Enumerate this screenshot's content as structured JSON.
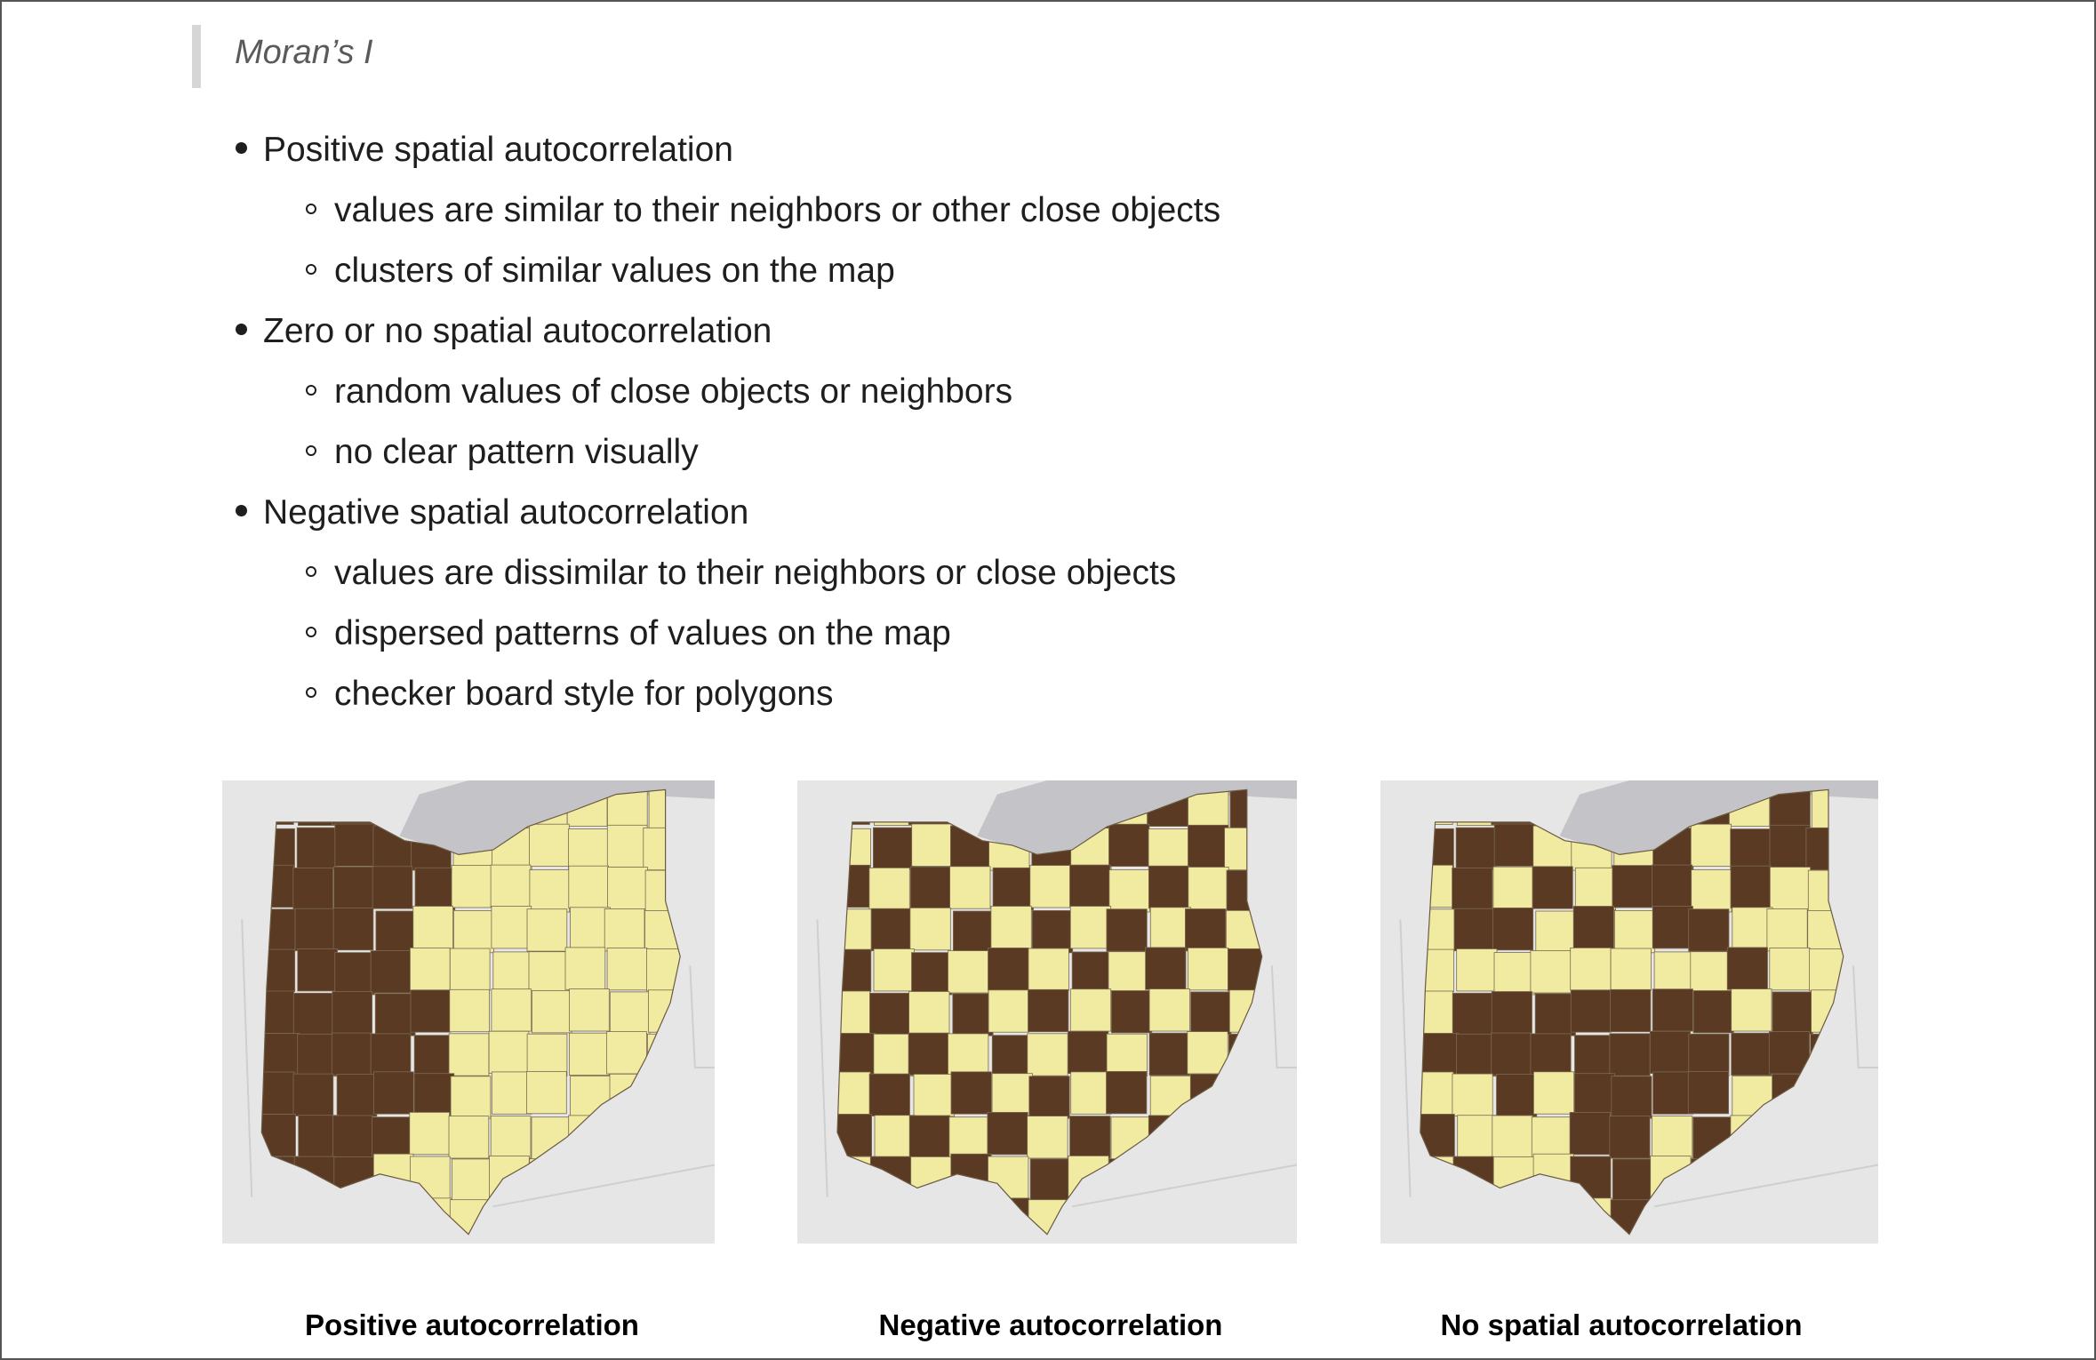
{
  "heading": "Moran’s I",
  "bullets": [
    {
      "text": "Positive spatial autocorrelation",
      "children": [
        "values are similar to their neighbors or other close objects",
        "clusters of similar values on the map"
      ]
    },
    {
      "text": "Zero or no spatial autocorrelation",
      "children": [
        "random values of close objects or neighbors",
        "no clear pattern visually"
      ]
    },
    {
      "text": "Negative spatial autocorrelation",
      "children": [
        "values are dissimilar to their neighbors or close objects",
        "dispersed patterns of values on the map",
        "checker board style for polygons"
      ]
    }
  ],
  "maps": [
    {
      "caption": "Positive autocorrelation",
      "pattern": "clustered"
    },
    {
      "caption": "Negative autocorrelation",
      "pattern": "checkerboard"
    },
    {
      "caption": "No spatial autocorrelation",
      "pattern": "random"
    }
  ],
  "colors": {
    "high": "#5b3a24",
    "low": "#f0eba1",
    "lake": "#c4c4c8",
    "background": "#e6e6e6",
    "county_border": "#7a6a50"
  }
}
